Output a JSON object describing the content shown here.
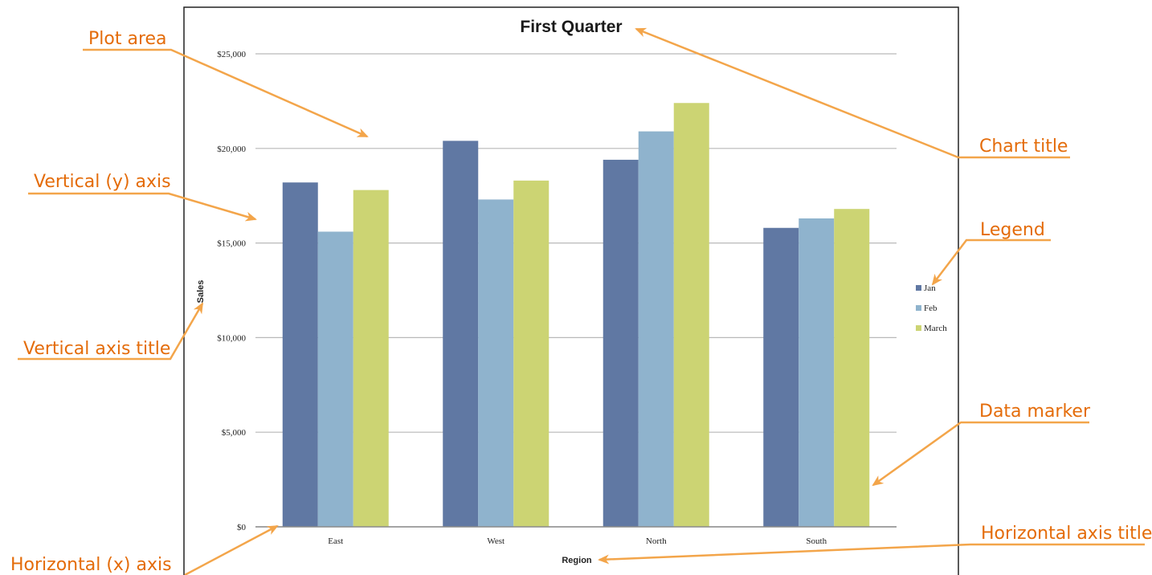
{
  "chart_data": {
    "type": "bar",
    "title": "First Quarter",
    "xlabel": "Region",
    "ylabel": "Sales",
    "categories": [
      "East",
      "West",
      "North",
      "South"
    ],
    "series": [
      {
        "name": "Jan",
        "color": "#6078a3",
        "values": [
          18200,
          20400,
          19400,
          15800
        ]
      },
      {
        "name": "Feb",
        "color": "#8fb3cd",
        "values": [
          15600,
          17300,
          20900,
          16300
        ]
      },
      {
        "name": "March",
        "color": "#ccd473",
        "values": [
          17800,
          18300,
          22400,
          16800
        ]
      }
    ],
    "ylim": [
      0,
      25000
    ],
    "yticks": [
      0,
      5000,
      10000,
      15000,
      20000,
      25000
    ],
    "ytick_labels": [
      "$0",
      "$5,000",
      "$10,000",
      "$15,000",
      "$20,000",
      "$25,000"
    ],
    "grid": true,
    "legend": "right"
  },
  "callouts": {
    "plot_area": "Plot area",
    "vertical_axis": "Vertical (y) axis",
    "vertical_axis_title": "Vertical axis title",
    "horizontal_axis": "Horizontal (x) axis",
    "chart_title": "Chart title",
    "legend": "Legend",
    "data_marker": "Data marker",
    "horizontal_axis_title": "Horizontal axis title"
  },
  "colors": {
    "callout": "#e46c0a",
    "gridline": "#b9b9b9",
    "frame": "#222222"
  }
}
